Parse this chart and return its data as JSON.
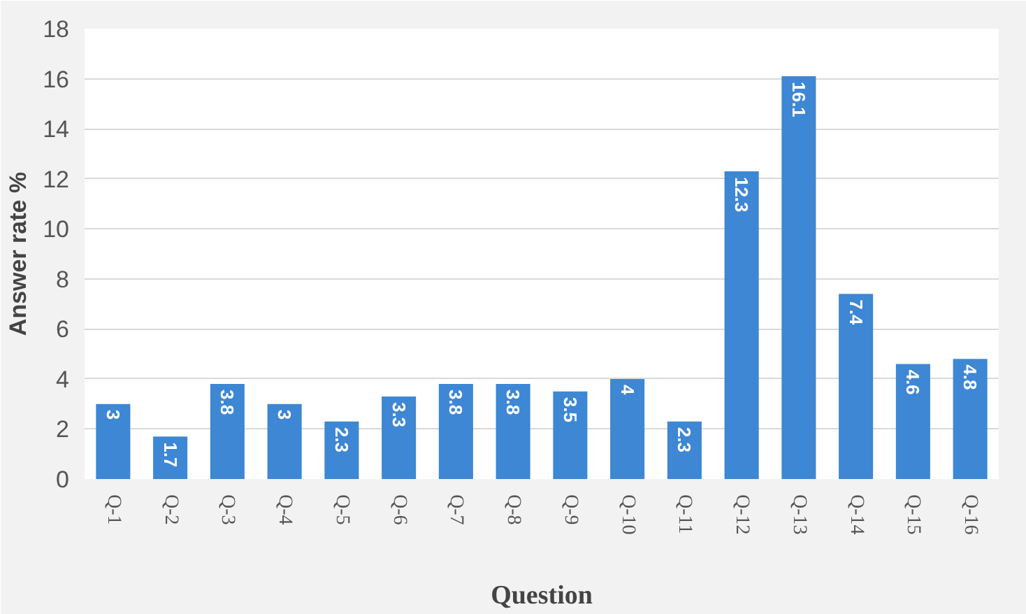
{
  "chart_data": {
    "type": "bar",
    "xlabel": "Question",
    "ylabel": "Answer rate %",
    "categories": [
      "Q-1",
      "Q-2",
      "Q-3",
      "Q-4",
      "Q-5",
      "Q-6",
      "Q-7",
      "Q-8",
      "Q-9",
      "Q-10",
      "Q-11",
      "Q-12",
      "Q-13",
      "Q-14",
      "Q-15",
      "Q-16"
    ],
    "values": [
      3,
      1.7,
      3.8,
      3,
      2.3,
      3.3,
      3.8,
      3.8,
      3.5,
      4,
      2.3,
      12.3,
      16.1,
      7.4,
      4.6,
      4.8
    ],
    "color": "#3d87d4",
    "ylim": [
      0,
      18
    ],
    "yticks": [
      0,
      2,
      4,
      6,
      8,
      10,
      12,
      14,
      16,
      18
    ],
    "grid": "y",
    "data_labels": true
  }
}
